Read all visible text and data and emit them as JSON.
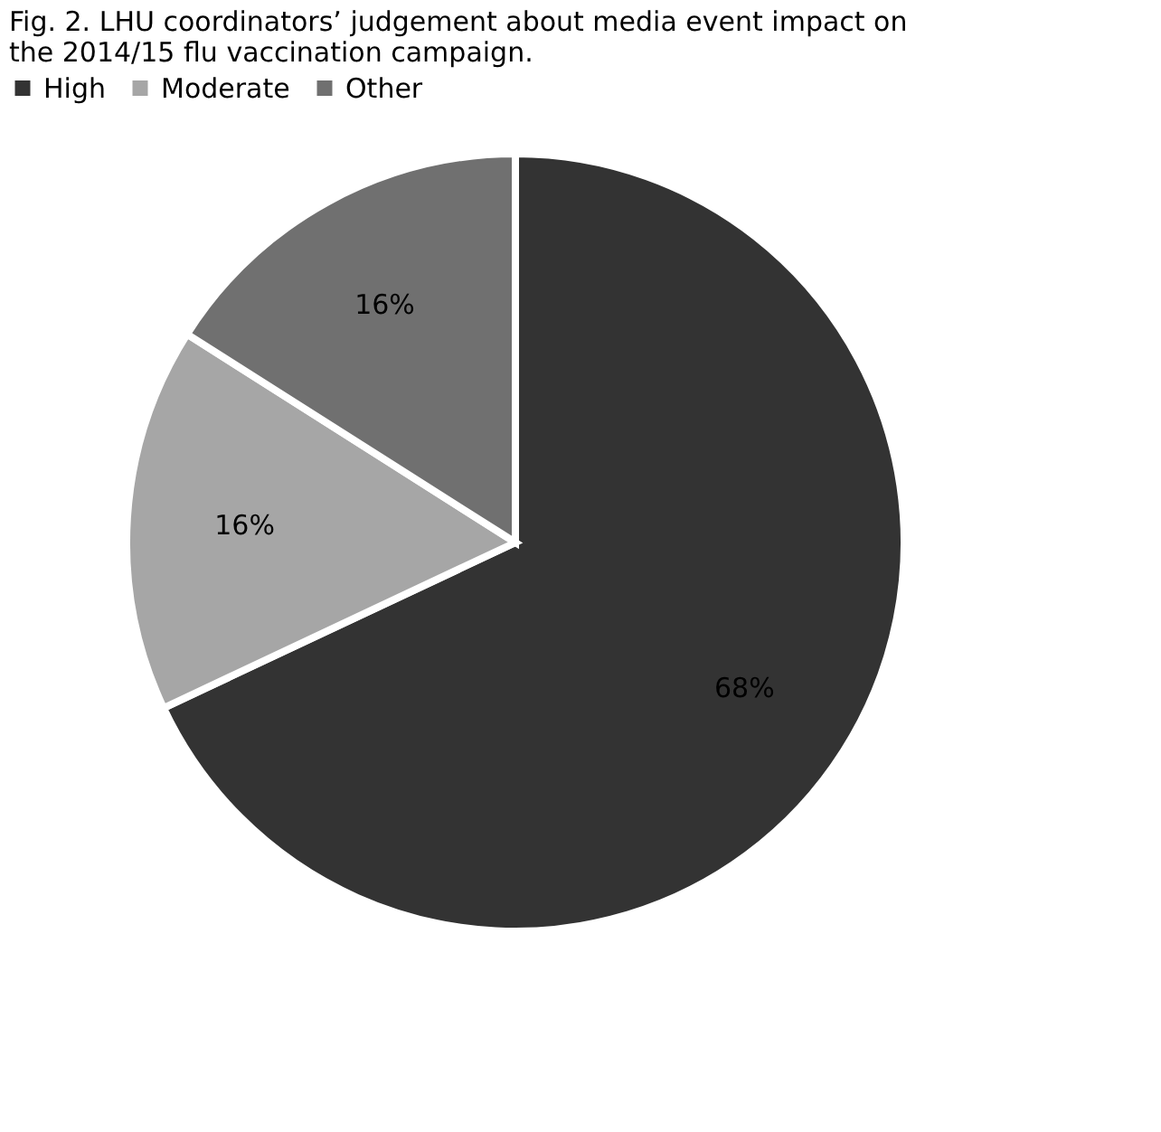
{
  "chart_data": {
    "type": "pie",
    "title": "Fig. 2. LHU coordinators’ judgement about media event impact on the 2014/15 flu vaccination campaign.",
    "categories": [
      "High",
      "Moderate",
      "Other"
    ],
    "values": [
      68,
      16,
      16
    ],
    "colors": [
      "#333333",
      "#a6a6a6",
      "#707070"
    ],
    "value_labels": [
      "68%",
      "16%",
      "16%"
    ],
    "legend": "top"
  }
}
